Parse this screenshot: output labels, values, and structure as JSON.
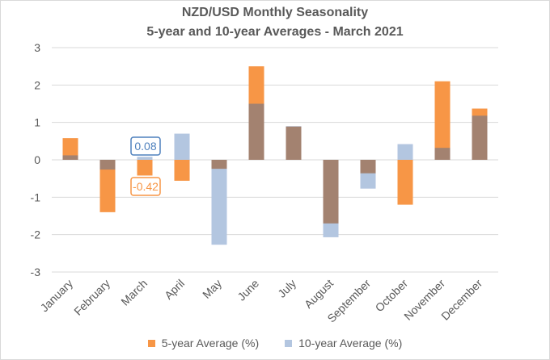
{
  "colors": {
    "five_year": "#F79646",
    "ten_year": "#B3C6E0",
    "overlap": "#A38270",
    "grid": "#D9D9D9",
    "text": "#595959",
    "callout_ten": "#4F81BD",
    "callout_five": "#F79646"
  },
  "chart_data": {
    "type": "bar",
    "title": "NZD/USD Monthly Seasonality",
    "subtitle": "5-year and 10-year Averages - March 2021",
    "xlabel": "",
    "ylabel": "",
    "ylim": [
      -3,
      3
    ],
    "yticks": [
      "3",
      "2",
      "1",
      "0",
      "-1",
      "-2",
      "-3"
    ],
    "grid": true,
    "legend_position": "bottom",
    "categories": [
      "January",
      "February",
      "March",
      "April",
      "May",
      "June",
      "July",
      "August",
      "September",
      "October",
      "November",
      "December"
    ],
    "series": [
      {
        "name": "5-year Average (%)",
        "values": [
          0.58,
          -1.4,
          -0.42,
          -0.56,
          -0.24,
          2.5,
          0.89,
          -1.7,
          -0.36,
          -1.2,
          2.1,
          1.37
        ]
      },
      {
        "name": "10-year Average (%)",
        "values": [
          0.12,
          -0.26,
          0.08,
          0.7,
          -2.27,
          1.5,
          0.9,
          -2.07,
          -0.77,
          0.42,
          0.32,
          1.18
        ]
      }
    ],
    "annotations": [
      {
        "category": "March",
        "series": "10-year Average (%)",
        "text": "0.08"
      },
      {
        "category": "March",
        "series": "5-year Average (%)",
        "text": "-0.42"
      }
    ]
  }
}
